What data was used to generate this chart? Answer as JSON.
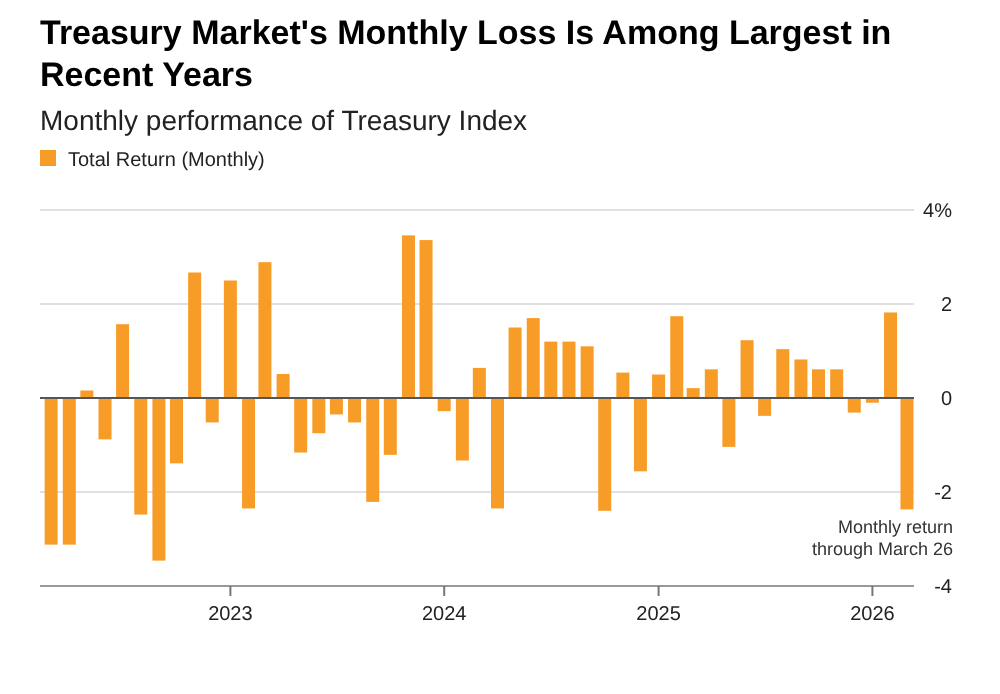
{
  "chart_data": {
    "type": "bar",
    "title": "Treasury Market's Monthly Loss Is Among Largest in Recent Years",
    "subtitle": "Monthly performance of Treasury Index",
    "x": [
      "2022-03",
      "2022-04",
      "2022-05",
      "2022-06",
      "2022-07",
      "2022-08",
      "2022-09",
      "2022-10",
      "2022-11",
      "2022-12",
      "2023-01",
      "2023-02",
      "2023-03",
      "2023-04",
      "2023-05",
      "2023-06",
      "2023-07",
      "2023-08",
      "2023-09",
      "2023-10",
      "2023-11",
      "2023-12",
      "2024-01",
      "2024-02",
      "2024-03",
      "2024-04",
      "2024-05",
      "2024-06",
      "2024-07",
      "2024-08",
      "2024-09",
      "2024-10",
      "2024-11",
      "2024-12",
      "2025-01",
      "2025-02",
      "2025-03",
      "2025-04",
      "2025-05",
      "2025-06",
      "2025-07",
      "2025-08",
      "2025-09",
      "2025-10",
      "2025-11",
      "2025-12",
      "2026-01",
      "2026-02",
      "2026-03"
    ],
    "series": [
      {
        "name": "Total Return (Monthly)",
        "color": "#f89c28",
        "values": [
          -3.12,
          -3.12,
          0.16,
          -0.88,
          1.57,
          -2.48,
          -3.46,
          -1.39,
          2.67,
          -0.52,
          2.5,
          -2.35,
          2.89,
          0.51,
          -1.16,
          -0.75,
          -0.35,
          -0.52,
          -2.21,
          -1.21,
          3.46,
          3.36,
          -0.28,
          -1.33,
          0.64,
          -2.35,
          1.5,
          1.7,
          1.2,
          1.2,
          1.1,
          -2.4,
          0.54,
          -1.56,
          0.5,
          1.74,
          0.21,
          0.61,
          -1.04,
          1.23,
          -0.38,
          1.04,
          0.82,
          0.61,
          0.61,
          -0.31,
          -0.1,
          1.82,
          -2.37
        ]
      }
    ],
    "xlim": [
      "2022-02-10",
      "2026-03-13"
    ],
    "xticks": [
      "2023",
      "2024",
      "2025",
      "2026"
    ],
    "ylim": [
      -4,
      4
    ],
    "yticks": [
      {
        "value": 4,
        "label": "4%"
      },
      2,
      0,
      -2,
      -4
    ],
    "grid": "y",
    "legend": "top left",
    "annotations": [
      {
        "text": "Monthly return through March 26",
        "x": "2026-03",
        "y": -2.37
      }
    ]
  }
}
